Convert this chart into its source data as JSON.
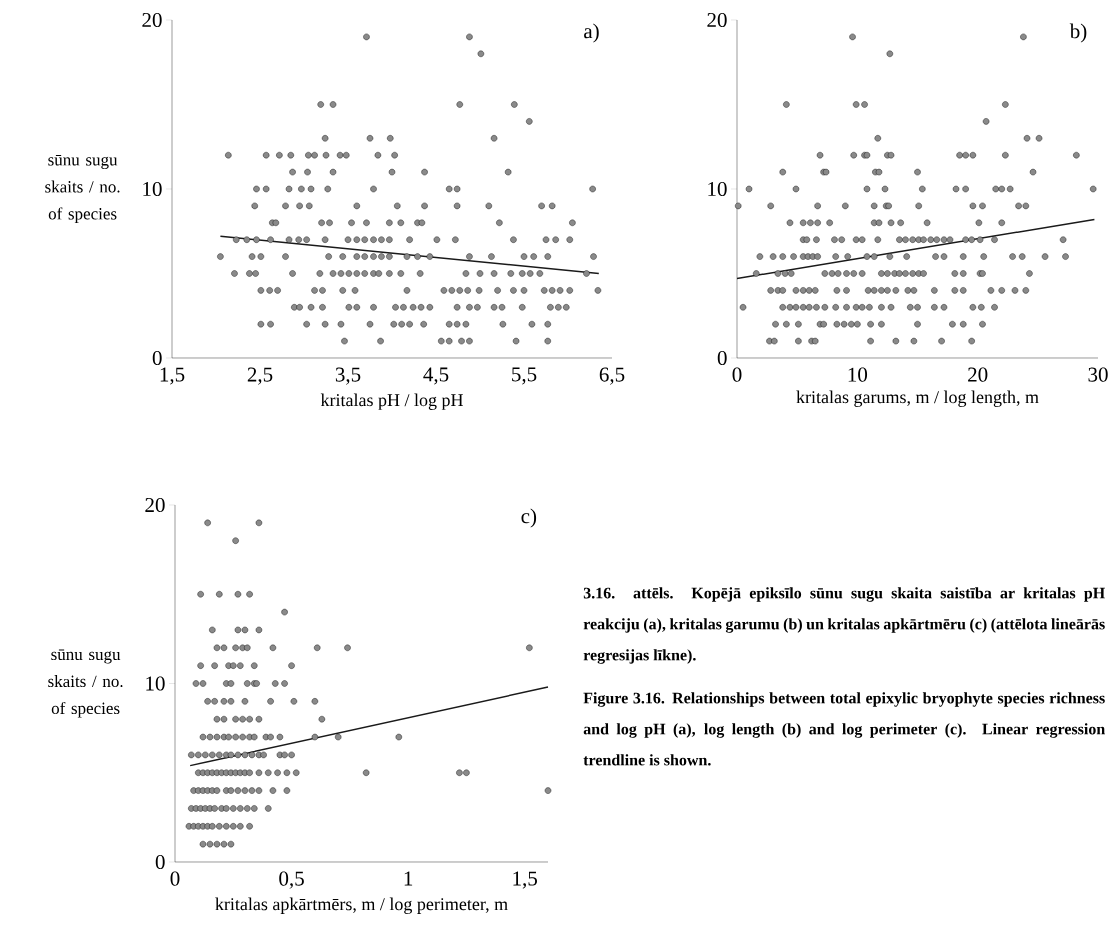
{
  "chart_data": [
    {
      "type": "scatter",
      "xlabel": "kritalas pH / log pH",
      "ylabel": "sūnu sugu skaits / no. of species",
      "xlim": [
        1.5,
        6.5
      ],
      "xticks": [
        {
          "value": 1.5,
          "label": "1,5"
        },
        {
          "value": 2.5,
          "label": "2,5"
        },
        {
          "value": 3.5,
          "label": "3,5"
        },
        {
          "value": 4.5,
          "label": "4,5"
        },
        {
          "value": 5.5,
          "label": "5,5"
        },
        {
          "value": 6.5,
          "label": "6,5"
        }
      ],
      "ylim": [
        0,
        20
      ],
      "yticks": [
        0,
        10,
        20
      ],
      "annotations": [
        "a)"
      ],
      "series": [
        {
          "type": "scatter",
          "marker": "circle",
          "color": "#8a8a8a",
          "x": [
            3.71,
            4.88,
            5.01,
            3.19,
            3.33,
            4.77,
            5.39,
            5.56,
            3.24,
            3.75,
            3.98,
            5.16,
            2.14,
            2.57,
            2.72,
            2.85,
            3.05,
            3.12,
            3.25,
            3.41,
            3.48,
            3.84,
            4.03,
            2.87,
            3.04,
            3.33,
            4.0,
            4.37,
            5.32,
            2.46,
            2.57,
            2.83,
            2.97,
            3.08,
            3.27,
            3.79,
            4.65,
            4.74,
            6.28,
            2.44,
            2.79,
            2.95,
            3.06,
            3.6,
            4.06,
            4.37,
            4.74,
            5.1,
            5.7,
            5.82,
            2.64,
            2.68,
            3.2,
            3.29,
            3.54,
            3.71,
            3.97,
            4.1,
            4.29,
            4.34,
            5.22,
            6.05,
            2.23,
            2.35,
            2.46,
            2.62,
            2.83,
            2.94,
            3.03,
            3.24,
            3.5,
            3.6,
            3.69,
            3.79,
            3.88,
            3.97,
            4.2,
            4.51,
            4.72,
            5.38,
            5.75,
            5.86,
            6.02,
            2.05,
            2.41,
            2.51,
            2.79,
            3.28,
            3.44,
            3.6,
            3.69,
            3.79,
            3.88,
            3.97,
            4.17,
            4.29,
            4.43,
            4.88,
            5.13,
            5.5,
            5.61,
            5.77,
            6.29,
            2.21,
            2.38,
            2.45,
            2.87,
            3.18,
            3.33,
            3.42,
            3.51,
            3.6,
            3.69,
            3.79,
            3.85,
            3.97,
            4.1,
            4.32,
            4.84,
            5.0,
            5.16,
            5.35,
            5.48,
            5.57,
            5.68,
            6.21,
            2.51,
            2.61,
            2.7,
            3.12,
            3.21,
            3.44,
            3.58,
            4.17,
            4.59,
            4.68,
            4.77,
            4.86,
            4.99,
            5.2,
            5.38,
            5.5,
            5.73,
            5.82,
            5.91,
            6.02,
            6.34,
            2.89,
            2.95,
            3.08,
            3.21,
            3.51,
            3.6,
            3.79,
            4.04,
            4.13,
            4.24,
            4.33,
            4.43,
            4.74,
            4.88,
            4.97,
            5.16,
            5.25,
            5.48,
            5.8,
            5.89,
            5.98,
            2.51,
            2.62,
            3.03,
            3.24,
            3.42,
            3.75,
            4.02,
            4.11,
            4.2,
            4.36,
            4.65,
            4.74,
            4.84,
            5.26,
            5.59,
            5.77,
            3.46,
            3.87,
            4.56,
            4.65,
            4.79,
            4.88,
            5.41,
            5.77
          ],
          "values": [
            19,
            19,
            18,
            15,
            15,
            15,
            15,
            14,
            13,
            13,
            13,
            13,
            12,
            12,
            12,
            12,
            12,
            12,
            12,
            12,
            12,
            12,
            12,
            11,
            11,
            11,
            11,
            11,
            11,
            10,
            10,
            10,
            10,
            10,
            10,
            10,
            10,
            10,
            10,
            9,
            9,
            9,
            9,
            9,
            9,
            9,
            9,
            9,
            9,
            9,
            8,
            8,
            8,
            8,
            8,
            8,
            8,
            8,
            8,
            8,
            8,
            8,
            7,
            7,
            7,
            7,
            7,
            7,
            7,
            7,
            7,
            7,
            7,
            7,
            7,
            7,
            7,
            7,
            7,
            7,
            7,
            7,
            7,
            6,
            6,
            6,
            6,
            6,
            6,
            6,
            6,
            6,
            6,
            6,
            6,
            6,
            6,
            6,
            6,
            6,
            6,
            6,
            6,
            5,
            5,
            5,
            5,
            5,
            5,
            5,
            5,
            5,
            5,
            5,
            5,
            5,
            5,
            5,
            5,
            5,
            5,
            5,
            5,
            5,
            5,
            5,
            4,
            4,
            4,
            4,
            4,
            4,
            4,
            4,
            4,
            4,
            4,
            4,
            4,
            4,
            4,
            4,
            4,
            4,
            4,
            4,
            4,
            3,
            3,
            3,
            3,
            3,
            3,
            3,
            3,
            3,
            3,
            3,
            3,
            3,
            3,
            3,
            3,
            3,
            3,
            3,
            3,
            3,
            2,
            2,
            2,
            2,
            2,
            2,
            2,
            2,
            2,
            2,
            2,
            2,
            2,
            2,
            2,
            2,
            1,
            1,
            1,
            1,
            1,
            1,
            1,
            1
          ]
        },
        {
          "type": "line",
          "marker": "none",
          "color": "#1a1a1a",
          "x": [
            2.05,
            6.35
          ],
          "values": [
            7.2,
            5.0
          ]
        }
      ]
    },
    {
      "type": "scatter",
      "xlabel": "kritalas garums, m / log length, m",
      "xlim": [
        0,
        30
      ],
      "xticks": [
        0,
        10,
        20,
        30
      ],
      "ylim": [
        0,
        20
      ],
      "yticks": [
        0,
        10,
        20
      ],
      "annotations": [
        "b)"
      ],
      "series": [
        {
          "type": "scatter",
          "marker": "circle",
          "color": "#8a8a8a",
          "x": [
            9.6,
            23.8,
            12.7,
            4.1,
            9.9,
            10.6,
            22.3,
            20.7,
            11.7,
            24.1,
            25.1,
            6.9,
            9.7,
            10.6,
            10.8,
            12.5,
            12.8,
            18.5,
            19.0,
            19.6,
            22.3,
            28.2,
            3.8,
            7.2,
            7.4,
            11.5,
            11.8,
            15.0,
            24.6,
            1.0,
            4.9,
            10.8,
            12.3,
            15.4,
            18.2,
            19.0,
            21.5,
            22.0,
            22.7,
            29.6,
            0.1,
            2.8,
            6.7,
            9.0,
            11.4,
            12.4,
            12.6,
            15.1,
            19.6,
            20.4,
            23.4,
            24.0,
            4.4,
            5.5,
            6.1,
            6.7,
            7.7,
            11.4,
            11.8,
            12.8,
            13.6,
            15.8,
            20.1,
            22.0,
            5.5,
            5.8,
            6.6,
            8.1,
            8.7,
            9.9,
            10.4,
            11.7,
            13.5,
            14.0,
            14.6,
            15.1,
            15.5,
            16.1,
            16.6,
            17.2,
            17.7,
            19.0,
            19.5,
            20.2,
            21.4,
            27.1,
            1.9,
            3.0,
            3.8,
            4.7,
            5.5,
            5.9,
            6.3,
            6.7,
            8.2,
            9.2,
            10.8,
            11.4,
            12.7,
            14.1,
            16.5,
            17.2,
            18.8,
            20.5,
            22.9,
            23.7,
            25.6,
            27.3,
            1.6,
            3.4,
            4.0,
            4.5,
            7.3,
            7.9,
            8.4,
            9.1,
            9.7,
            10.4,
            12.0,
            12.5,
            13.1,
            13.5,
            14.0,
            14.6,
            15.1,
            15.5,
            18.1,
            18.8,
            20.2,
            20.4,
            24.3,
            2.8,
            3.4,
            3.8,
            4.9,
            5.5,
            6.0,
            6.5,
            8.3,
            9.1,
            10.9,
            11.4,
            12.0,
            12.5,
            13.2,
            14.2,
            14.7,
            16.4,
            18.1,
            18.8,
            21.1,
            22.0,
            23.1,
            24.0,
            0.5,
            3.8,
            4.4,
            4.9,
            5.5,
            6.0,
            6.6,
            7.3,
            8.2,
            9.1,
            9.9,
            10.4,
            11.0,
            12.0,
            12.8,
            14.4,
            15.0,
            16.4,
            17.2,
            19.6,
            20.3,
            21.4,
            3.2,
            4.1,
            5.1,
            6.9,
            7.2,
            8.3,
            8.9,
            9.5,
            10.0,
            11.1,
            12.0,
            15.0,
            17.9,
            18.8,
            20.4,
            2.7,
            3.1,
            5.1,
            6.2,
            6.5,
            11.1,
            13.2,
            14.7,
            17.0,
            19.5
          ],
          "values": [
            19,
            19,
            18,
            15,
            15,
            15,
            15,
            14,
            13,
            13,
            13,
            12,
            12,
            12,
            12,
            12,
            12,
            12,
            12,
            12,
            12,
            12,
            11,
            11,
            11,
            11,
            11,
            11,
            11,
            10,
            10,
            10,
            10,
            10,
            10,
            10,
            10,
            10,
            10,
            10,
            9,
            9,
            9,
            9,
            9,
            9,
            9,
            9,
            9,
            9,
            9,
            9,
            8,
            8,
            8,
            8,
            8,
            8,
            8,
            8,
            8,
            8,
            8,
            8,
            7,
            7,
            7,
            7,
            7,
            7,
            7,
            7,
            7,
            7,
            7,
            7,
            7,
            7,
            7,
            7,
            7,
            7,
            7,
            7,
            7,
            7,
            6,
            6,
            6,
            6,
            6,
            6,
            6,
            6,
            6,
            6,
            6,
            6,
            6,
            6,
            6,
            6,
            6,
            6,
            6,
            6,
            6,
            6,
            5,
            5,
            5,
            5,
            5,
            5,
            5,
            5,
            5,
            5,
            5,
            5,
            5,
            5,
            5,
            5,
            5,
            5,
            5,
            5,
            5,
            5,
            5,
            4,
            4,
            4,
            4,
            4,
            4,
            4,
            4,
            4,
            4,
            4,
            4,
            4,
            4,
            4,
            4,
            4,
            4,
            4,
            4,
            4,
            4,
            4,
            3,
            3,
            3,
            3,
            3,
            3,
            3,
            3,
            3,
            3,
            3,
            3,
            3,
            3,
            3,
            3,
            3,
            3,
            3,
            3,
            3,
            3,
            2,
            2,
            2,
            2,
            2,
            2,
            2,
            2,
            2,
            2,
            2,
            2,
            2,
            2,
            2,
            1,
            1,
            1,
            1,
            1,
            1,
            1,
            1,
            1,
            1
          ]
        },
        {
          "type": "line",
          "marker": "none",
          "color": "#1a1a1a",
          "x": [
            0,
            29.7
          ],
          "values": [
            4.7,
            8.2
          ]
        }
      ]
    },
    {
      "type": "scatter",
      "xlabel": "kritalas apkārtmērs, m / log perimeter, m",
      "ylabel": "sūnu sugu skaits / no. of species",
      "xlim": [
        0,
        1.6
      ],
      "xticks": [
        0,
        {
          "value": 0.5,
          "label": "0,5"
        },
        1,
        {
          "value": 1.5,
          "label": "1,5"
        }
      ],
      "ylim": [
        0,
        20
      ],
      "yticks": [
        0,
        10,
        20
      ],
      "annotations": [
        "c)"
      ],
      "series": [
        {
          "type": "scatter",
          "marker": "circle",
          "color": "#8a8a8a",
          "x": [
            0.14,
            0.36,
            0.26,
            0.11,
            0.19,
            0.27,
            0.32,
            0.47,
            0.16,
            0.27,
            0.3,
            0.36,
            0.18,
            0.21,
            0.26,
            0.29,
            0.31,
            0.42,
            0.61,
            0.74,
            1.52,
            0.11,
            0.17,
            0.23,
            0.25,
            0.28,
            0.34,
            0.5,
            0.09,
            0.12,
            0.22,
            0.24,
            0.31,
            0.34,
            0.35,
            0.43,
            0.47,
            0.14,
            0.17,
            0.21,
            0.24,
            0.3,
            0.41,
            0.51,
            0.6,
            0.18,
            0.21,
            0.26,
            0.29,
            0.32,
            0.36,
            0.63,
            0.12,
            0.15,
            0.18,
            0.21,
            0.23,
            0.26,
            0.29,
            0.32,
            0.34,
            0.39,
            0.41,
            0.45,
            0.6,
            0.7,
            0.96,
            0.07,
            0.1,
            0.13,
            0.16,
            0.19,
            0.22,
            0.24,
            0.27,
            0.3,
            0.33,
            0.36,
            0.38,
            0.45,
            0.47,
            0.5,
            0.1,
            0.12,
            0.14,
            0.16,
            0.18,
            0.2,
            0.22,
            0.24,
            0.26,
            0.28,
            0.3,
            0.32,
            0.36,
            0.4,
            0.44,
            0.48,
            0.52,
            0.82,
            1.22,
            1.25,
            0.08,
            0.1,
            0.12,
            0.14,
            0.16,
            0.18,
            0.22,
            0.24,
            0.27,
            0.3,
            0.33,
            0.36,
            0.42,
            0.48,
            1.6,
            0.07,
            0.09,
            0.11,
            0.13,
            0.15,
            0.17,
            0.2,
            0.22,
            0.25,
            0.28,
            0.31,
            0.34,
            0.4,
            0.06,
            0.08,
            0.1,
            0.12,
            0.14,
            0.16,
            0.19,
            0.22,
            0.25,
            0.28,
            0.32,
            0.12,
            0.15,
            0.18,
            0.21,
            0.24
          ],
          "values": [
            19,
            19,
            18,
            15,
            15,
            15,
            15,
            14,
            13,
            13,
            13,
            13,
            12,
            12,
            12,
            12,
            12,
            12,
            12,
            12,
            12,
            11,
            11,
            11,
            11,
            11,
            11,
            11,
            10,
            10,
            10,
            10,
            10,
            10,
            10,
            10,
            10,
            9,
            9,
            9,
            9,
            9,
            9,
            9,
            9,
            8,
            8,
            8,
            8,
            8,
            8,
            8,
            7,
            7,
            7,
            7,
            7,
            7,
            7,
            7,
            7,
            7,
            7,
            7,
            7,
            7,
            7,
            6,
            6,
            6,
            6,
            6,
            6,
            6,
            6,
            6,
            6,
            6,
            6,
            6,
            6,
            6,
            5,
            5,
            5,
            5,
            5,
            5,
            5,
            5,
            5,
            5,
            5,
            5,
            5,
            5,
            5,
            5,
            5,
            5,
            5,
            5,
            4,
            4,
            4,
            4,
            4,
            4,
            4,
            4,
            4,
            4,
            4,
            4,
            4,
            4,
            4,
            3,
            3,
            3,
            3,
            3,
            3,
            3,
            3,
            3,
            3,
            3,
            3,
            3,
            2,
            2,
            2,
            2,
            2,
            2,
            2,
            2,
            2,
            2,
            2,
            1,
            1,
            1,
            1,
            1
          ]
        },
        {
          "type": "line",
          "marker": "none",
          "color": "#1a1a1a",
          "x": [
            0.065,
            1.6
          ],
          "values": [
            5.4,
            9.8
          ]
        }
      ]
    },
    {
      "type": "other",
      "annotations": [
        "3.16. attēls. Kopējā epiksīlo sūnu sugu skaita saistība ar kritalas pH reakciju (a), kritalas garumu (b) un kritalas apkārtmēru (c) (attēlota lineārās regresijas līkne).",
        "Figure 3.16. Relationships between total epixylic bryophyte species richness and log pH (a), log length (b) and log perimeter (c). Linear regression trendline is shown."
      ]
    }
  ]
}
